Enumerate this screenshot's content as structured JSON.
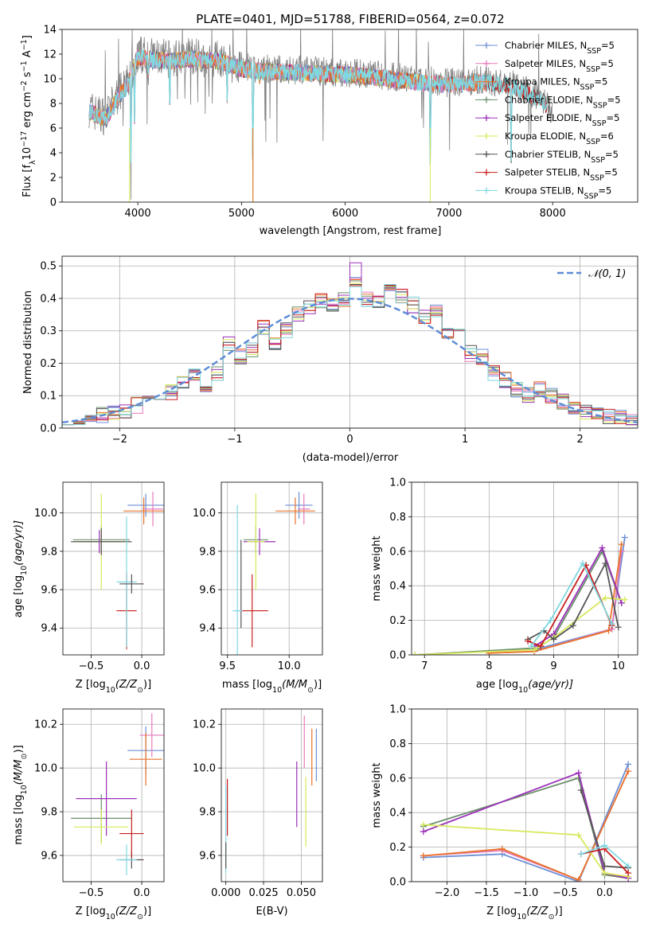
{
  "figure_title": "PLATE=0401, MJD=51788, FIBERID=0564, z=0.072",
  "colors": {
    "Chabrier MILES": "#6b8fd4",
    "Salpeter MILES": "#e87ab8",
    "Kroupa MILES": "#e8732a",
    "Chabrier ELODIE": "#6b8f6b",
    "Salpeter ELODIE": "#9b30b8",
    "Kroupa ELODIE": "#d8e85a",
    "Chabrier STELIB": "#555555",
    "Salpeter STELIB": "#c82020",
    "Kroupa STELIB": "#80d8e0",
    "data": "#808080"
  },
  "chart_data": [
    {
      "id": "spectrum",
      "type": "line",
      "title": "PLATE=0401, MJD=51788, FIBERID=0564, z=0.072",
      "xlabel": "wavelength [Angstrom, rest frame]",
      "ylabel_main": "Flux [f",
      "ylabel_sub1": "λ",
      "ylabel_mid": "10",
      "ylabel_sup1": "−17",
      "ylabel_rest": " erg cm",
      "ylabel_sup2": "−2",
      "ylabel_rest2": " s",
      "ylabel_sup3": "−1",
      "ylabel_rest3": " A",
      "ylabel_sup4": "−1",
      "ylabel_end": "]",
      "xlim": [
        3270,
        8820
      ],
      "ylim": [
        0,
        14
      ],
      "xticks": [
        "4000",
        "5000",
        "6000",
        "7000",
        "8000"
      ],
      "yticks": [
        "0",
        "2",
        "4",
        "6",
        "8",
        "10",
        "12",
        "14"
      ],
      "grid": false,
      "legend_position": "right",
      "legend": [
        {
          "name": "Chabrier MILES",
          "nssp": "=5"
        },
        {
          "name": "Salpeter MILES",
          "nssp": "=5"
        },
        {
          "name": "Kroupa MILES",
          "nssp": "=5"
        },
        {
          "name": "Chabrier ELODIE",
          "nssp": "=5"
        },
        {
          "name": "Salpeter ELODIE",
          "nssp": "=5"
        },
        {
          "name": "Kroupa ELODIE",
          "nssp": "=6"
        },
        {
          "name": "Chabrier STELIB",
          "nssp": "=5"
        },
        {
          "name": "Salpeter STELIB",
          "nssp": "=5"
        },
        {
          "name": "Kroupa STELIB",
          "nssp": "=5"
        }
      ],
      "continuum_knots": [
        [
          3530,
          7.6
        ],
        [
          3600,
          7.2
        ],
        [
          3700,
          7.0
        ],
        [
          3800,
          8.6
        ],
        [
          3900,
          9.6
        ],
        [
          4000,
          12.0
        ],
        [
          4100,
          11.8
        ],
        [
          4300,
          11.6
        ],
        [
          4500,
          11.8
        ],
        [
          4800,
          11.6
        ],
        [
          5000,
          11.0
        ],
        [
          5200,
          10.8
        ],
        [
          5500,
          10.7
        ],
        [
          5800,
          10.6
        ],
        [
          6200,
          10.4
        ],
        [
          6600,
          10.0
        ],
        [
          7000,
          9.7
        ],
        [
          7300,
          9.9
        ],
        [
          7600,
          9.6
        ],
        [
          7900,
          8.5
        ],
        [
          8000,
          7.2
        ]
      ],
      "absorption_lines": [
        {
          "x": 3934,
          "y": 0
        },
        {
          "x": 3969,
          "y": 5.5
        },
        {
          "x": 4102,
          "y": 9.5
        },
        {
          "x": 4308,
          "y": 6.5
        },
        {
          "x": 4861,
          "y": 7.5
        },
        {
          "x": 5110,
          "y": 0
        },
        {
          "x": 5176,
          "y": 9.3
        },
        {
          "x": 5890,
          "y": 9.5
        },
        {
          "x": 6563,
          "y": 9.6
        },
        {
          "x": 6820,
          "y": 0
        },
        {
          "x": 7600,
          "y": 0.4
        }
      ]
    },
    {
      "id": "residuals",
      "type": "line",
      "xlabel": "(data-model)/error",
      "ylabel": "Normed distribution",
      "xlim": [
        -2.5,
        2.5
      ],
      "ylim": [
        0,
        0.53
      ],
      "xticks": [
        "−2",
        "−1",
        "0",
        "1",
        "2"
      ],
      "yticks": [
        "0.0",
        "0.1",
        "0.2",
        "0.3",
        "0.4",
        "0.5"
      ],
      "grid": true,
      "legend": [
        {
          "name": "𝒩(0, 1)"
        }
      ],
      "legend_position": "top-right",
      "normal_curve": {
        "mean": 0,
        "sigma": 1
      },
      "bin_edges": [
        -2.5,
        -2.4,
        -2.3,
        -2.2,
        -2.1,
        -2.0,
        -1.9,
        -1.8,
        -1.7,
        -1.6,
        -1.5,
        -1.4,
        -1.3,
        -1.2,
        -1.1,
        -1.0,
        -0.9,
        -0.8,
        -0.7,
        -0.6,
        -0.5,
        -0.4,
        -0.3,
        -0.2,
        -0.1,
        0.0,
        0.1,
        0.2,
        0.3,
        0.4,
        0.5,
        0.6,
        0.7,
        0.8,
        0.9,
        1.0,
        1.1,
        1.2,
        1.3,
        1.4,
        1.5,
        1.6,
        1.7,
        1.8,
        1.9,
        2.0,
        2.1,
        2.2,
        2.3,
        2.4,
        2.5
      ],
      "histogram_base": [
        0.02,
        0.025,
        0.03,
        0.04,
        0.05,
        0.055,
        0.07,
        0.1,
        0.09,
        0.11,
        0.14,
        0.16,
        0.13,
        0.17,
        0.26,
        0.22,
        0.24,
        0.31,
        0.26,
        0.3,
        0.35,
        0.37,
        0.39,
        0.38,
        0.4,
        0.45,
        0.4,
        0.39,
        0.42,
        0.41,
        0.38,
        0.34,
        0.36,
        0.3,
        0.32,
        0.23,
        0.22,
        0.17,
        0.15,
        0.12,
        0.1,
        0.12,
        0.1,
        0.08,
        0.06,
        0.05,
        0.04,
        0.035,
        0.03,
        0.02
      ]
    },
    {
      "id": "age-vs-Z",
      "type": "scatter",
      "xlabel": "Z [log",
      "xlabel_sub": "10",
      "xlabel_frac": "(Z/Z",
      "xlabel_sun": "⊙",
      "xlabel_end": ")]",
      "ylabel": "age  [log",
      "ylabel_sub": "10",
      "ylabel_end": "(age/yr)]",
      "xlim": [
        -0.78,
        0.22
      ],
      "ylim": [
        9.26,
        10.16
      ],
      "xticks": [
        "−0.5",
        "0.0"
      ],
      "yticks": [
        "9.4",
        "9.6",
        "9.8",
        "10.0"
      ],
      "grid": true,
      "points": [
        {
          "series": "Chabrier MILES",
          "x": 0.04,
          "y": 10.04,
          "xerr": 0.18,
          "yerr": 0.06
        },
        {
          "series": "Salpeter MILES",
          "x": 0.11,
          "y": 10.02,
          "xerr": 0.1,
          "yerr": 0.09
        },
        {
          "series": "Kroupa MILES",
          "x": 0.02,
          "y": 10.01,
          "xerr": 0.2,
          "yerr": 0.07
        },
        {
          "series": "Chabrier ELODIE",
          "x": -0.4,
          "y": 9.86,
          "xerr": 0.28,
          "yerr": 0.07
        },
        {
          "series": "Salpeter ELODIE",
          "x": -0.42,
          "y": 9.85,
          "xerr": 0.2,
          "yerr": 0.06
        },
        {
          "series": "Kroupa ELODIE",
          "x": -0.4,
          "y": 9.85,
          "xerr": 0.27,
          "yerr": 0.25
        },
        {
          "series": "Chabrier STELIB",
          "x": -0.4,
          "y": 9.85,
          "xerr": 0.3,
          "yerr": 0.07
        },
        {
          "series": "Salpeter STELIB",
          "x": -0.15,
          "y": 9.49,
          "xerr": 0.1,
          "yerr": 0.2
        },
        {
          "series": "Kroupa STELIB",
          "x": -0.15,
          "y": 9.64,
          "xerr": 0.1,
          "yerr": 0.34
        },
        {
          "series": "Chabrier STELIB",
          "x": -0.1,
          "y": 9.63,
          "xerr": 0.12,
          "yerr": 0.05
        }
      ]
    },
    {
      "id": "age-vs-mass",
      "type": "scatter",
      "xlabel": "mass [log",
      "xlabel_sub": "10",
      "xlabel_frac": "(M/M",
      "xlabel_sun": "⊙",
      "xlabel_end": ")]",
      "xlim": [
        9.45,
        10.27
      ],
      "ylim": [
        9.26,
        10.16
      ],
      "xticks": [
        "9.5",
        "10.0"
      ],
      "yticks": [
        "9.4",
        "9.6",
        "9.8",
        "10.0"
      ],
      "grid": true,
      "points": [
        {
          "series": "Chabrier MILES",
          "x": 10.08,
          "y": 10.04,
          "xerr": 0.11,
          "yerr": 0.07
        },
        {
          "series": "Salpeter MILES",
          "x": 10.12,
          "y": 10.02,
          "xerr": 0.05,
          "yerr": 0.08
        },
        {
          "series": "Kroupa MILES",
          "x": 10.05,
          "y": 10.01,
          "xerr": 0.16,
          "yerr": 0.07
        },
        {
          "series": "Chabrier ELODIE",
          "x": 9.73,
          "y": 9.86,
          "xerr": 0.1,
          "yerr": 0.07
        },
        {
          "series": "Salpeter ELODIE",
          "x": 9.76,
          "y": 9.85,
          "xerr": 0.13,
          "yerr": 0.07
        },
        {
          "series": "Kroupa ELODIE",
          "x": 9.73,
          "y": 9.85,
          "xerr": 0.07,
          "yerr": 0.25
        },
        {
          "series": "Chabrier STELIB",
          "x": 9.61,
          "y": 9.63,
          "xerr": 0.0,
          "yerr": 0.23
        },
        {
          "series": "Salpeter STELIB",
          "x": 9.7,
          "y": 9.49,
          "xerr": 0.13,
          "yerr": 0.19
        },
        {
          "series": "Kroupa STELIB",
          "x": 9.58,
          "y": 9.49,
          "xerr": 0.04,
          "yerr": 0.55
        }
      ]
    },
    {
      "id": "mass-weight-vs-age",
      "type": "line",
      "xlabel": "age  [log",
      "xlabel_sub": "10",
      "xlabel_end": "(age/yr)]",
      "ylabel": "mass weight",
      "xlim": [
        6.8,
        10.3
      ],
      "ylim": [
        0,
        1.0
      ],
      "xticks": [
        "7",
        "8",
        "9",
        "10"
      ],
      "yticks": [
        "0.0",
        "0.2",
        "0.4",
        "0.6",
        "0.8",
        "1.0"
      ],
      "grid": true,
      "series": [
        {
          "name": "Chabrier MILES",
          "x": [
            8.7,
            9.9,
            10.1
          ],
          "y": [
            0.03,
            0.15,
            0.68
          ]
        },
        {
          "name": "Salpeter MILES",
          "x": [
            8.7,
            9.9,
            10.05
          ],
          "y": [
            0.02,
            0.15,
            0.6
          ]
        },
        {
          "name": "Kroupa MILES",
          "x": [
            8.0,
            8.7,
            9.85,
            10.05
          ],
          "y": [
            0.01,
            0.02,
            0.14,
            0.64
          ]
        },
        {
          "name": "Chabrier ELODIE",
          "x": [
            6.85,
            8.75,
            9.0,
            9.75,
            10.05
          ],
          "y": [
            0.0,
            0.04,
            0.1,
            0.6,
            0.3
          ]
        },
        {
          "name": "Salpeter ELODIE",
          "x": [
            8.7,
            9.0,
            9.75,
            10.05
          ],
          "y": [
            0.05,
            0.12,
            0.62,
            0.3
          ]
        },
        {
          "name": "Kroupa ELODIE",
          "x": [
            6.85,
            8.7,
            9.0,
            9.8,
            10.1
          ],
          "y": [
            0.0,
            0.03,
            0.1,
            0.33,
            0.32
          ]
        },
        {
          "name": "Chabrier STELIB",
          "x": [
            8.6,
            8.85,
            9.0,
            9.3,
            9.8,
            10.0
          ],
          "y": [
            0.09,
            0.14,
            0.09,
            0.17,
            0.53,
            0.16
          ]
        },
        {
          "name": "Salpeter STELIB",
          "x": [
            8.6,
            8.8,
            9.5,
            9.9
          ],
          "y": [
            0.08,
            0.05,
            0.52,
            0.17
          ]
        },
        {
          "name": "Kroupa STELIB",
          "x": [
            8.65,
            8.95,
            9.45,
            9.9
          ],
          "y": [
            0.05,
            0.2,
            0.53,
            0.18
          ]
        }
      ]
    },
    {
      "id": "mass-vs-Z",
      "type": "scatter",
      "xlabel": "Z [log",
      "xlabel_sub": "10",
      "xlabel_frac": "(Z/Z",
      "xlabel_sun": "⊙",
      "xlabel_end": ")]",
      "ylabel": "mass [log",
      "ylabel_sub": "10",
      "ylabel_frac": "(M/M",
      "ylabel_sun": "⊙",
      "ylabel_end": ")]",
      "xlim": [
        -0.78,
        0.22
      ],
      "ylim": [
        9.48,
        10.27
      ],
      "xticks": [
        "−0.5",
        "0.0"
      ],
      "yticks": [
        "9.6",
        "9.8",
        "10.0",
        "10.2"
      ],
      "grid": true,
      "points": [
        {
          "series": "Chabrier MILES",
          "x": 0.04,
          "y": 10.08,
          "xerr": 0.18,
          "yerr": 0.11
        },
        {
          "series": "Salpeter MILES",
          "x": 0.1,
          "y": 10.15,
          "xerr": 0.12,
          "yerr": 0.1
        },
        {
          "series": "Kroupa MILES",
          "x": 0.04,
          "y": 10.04,
          "xerr": 0.16,
          "yerr": 0.12
        },
        {
          "series": "Chabrier ELODIE",
          "x": -0.4,
          "y": 9.77,
          "xerr": 0.3,
          "yerr": 0.11
        },
        {
          "series": "Salpeter ELODIE",
          "x": -0.35,
          "y": 9.86,
          "xerr": 0.3,
          "yerr": 0.17
        },
        {
          "series": "Kroupa ELODIE",
          "x": -0.4,
          "y": 9.73,
          "xerr": 0.27,
          "yerr": 0.08
        },
        {
          "series": "Chabrier STELIB",
          "x": -0.1,
          "y": 9.58,
          "xerr": 0.12,
          "yerr": 0.04
        },
        {
          "series": "Salpeter STELIB",
          "x": -0.1,
          "y": 9.7,
          "xerr": 0.12,
          "yerr": 0.11
        },
        {
          "series": "Kroupa STELIB",
          "x": -0.15,
          "y": 9.58,
          "xerr": 0.1,
          "yerr": 0.07
        }
      ]
    },
    {
      "id": "mass-vs-EBV",
      "type": "scatter",
      "xlabel": "E(B-V)",
      "xlim": [
        -0.003,
        0.064
      ],
      "ylim": [
        9.48,
        10.27
      ],
      "xticks": [
        "0.000",
        "0.025",
        "0.050"
      ],
      "yticks": [
        "9.6",
        "9.8",
        "10.0",
        "10.2"
      ],
      "grid": true,
      "points": [
        {
          "series": "Chabrier MILES",
          "x": 0.06,
          "y": 10.06,
          "xerr": 0,
          "yerr": 0.12
        },
        {
          "series": "Salpeter MILES",
          "x": 0.052,
          "y": 10.12,
          "xerr": 0,
          "yerr": 0.12
        },
        {
          "series": "Kroupa MILES",
          "x": 0.057,
          "y": 10.05,
          "xerr": 0,
          "yerr": 0.13
        },
        {
          "series": "Salpeter ELODIE",
          "x": 0.047,
          "y": 9.88,
          "xerr": 0,
          "yerr": 0.15
        },
        {
          "series": "Kroupa ELODIE",
          "x": 0.053,
          "y": 9.8,
          "xerr": 0,
          "yerr": 0.16
        },
        {
          "series": "Salpeter STELIB",
          "x": 0.001,
          "y": 9.82,
          "xerr": 0,
          "yerr": 0.13
        },
        {
          "series": "Kroupa STELIB",
          "x": 0.0,
          "y": 9.72,
          "xerr": 0,
          "yerr": 0.2
        },
        {
          "series": "Chabrier STELIB",
          "x": 0.0,
          "y": 9.6,
          "xerr": 0,
          "yerr": 0.06
        }
      ]
    },
    {
      "id": "mass-weight-vs-Z",
      "type": "line",
      "xlabel": "Z [log",
      "xlabel_sub": "10",
      "xlabel_frac": "(Z/Z",
      "xlabel_sun": "⊙",
      "xlabel_end": ")]",
      "ylabel": "mass weight",
      "xlim": [
        -2.45,
        0.42
      ],
      "ylim": [
        0,
        1.0
      ],
      "xticks": [
        "−2.0",
        "−1.5",
        "−1.0",
        "−0.5",
        "0.0"
      ],
      "yticks": [
        "0.0",
        "0.2",
        "0.4",
        "0.6",
        "0.8",
        "1.0"
      ],
      "grid": true,
      "series": [
        {
          "name": "Chabrier MILES",
          "x": [
            -2.3,
            -1.3,
            -0.33,
            0.3
          ],
          "y": [
            0.14,
            0.16,
            0.0,
            0.68
          ]
        },
        {
          "name": "Salpeter MILES",
          "x": [
            -2.3,
            -1.3,
            -0.33,
            0.3
          ],
          "y": [
            0.15,
            0.18,
            0.01,
            0.64
          ]
        },
        {
          "name": "Kroupa MILES",
          "x": [
            -2.3,
            -1.3,
            -0.33,
            0.3
          ],
          "y": [
            0.15,
            0.19,
            0.01,
            0.64
          ]
        },
        {
          "name": "Chabrier ELODIE",
          "x": [
            -2.3,
            -0.33,
            0.0,
            0.3
          ],
          "y": [
            0.32,
            0.6,
            0.04,
            0.02
          ]
        },
        {
          "name": "Salpeter ELODIE",
          "x": [
            -2.3,
            -0.33,
            0.0,
            0.3
          ],
          "y": [
            0.29,
            0.63,
            0.05,
            0.02
          ]
        },
        {
          "name": "Kroupa ELODIE",
          "x": [
            -2.3,
            -0.33,
            0.0,
            0.3
          ],
          "y": [
            0.33,
            0.27,
            0.05,
            0.03
          ]
        },
        {
          "name": "Chabrier STELIB",
          "x": [
            -0.3,
            0.0,
            0.3
          ],
          "y": [
            0.53,
            0.09,
            0.08
          ]
        },
        {
          "name": "Salpeter STELIB",
          "x": [
            -0.3,
            0.0,
            0.3
          ],
          "y": [
            0.16,
            0.19,
            0.05
          ]
        },
        {
          "name": "Kroupa STELIB",
          "x": [
            -0.3,
            0.0,
            0.3
          ],
          "y": [
            0.16,
            0.21,
            0.09
          ]
        }
      ]
    }
  ]
}
